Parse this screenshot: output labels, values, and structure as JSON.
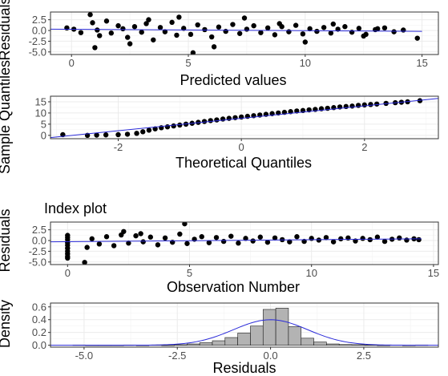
{
  "colors": {
    "point": "#000000",
    "fit_line": "#2b2bd9",
    "bar_fill": "#b3b3b3",
    "bar_stroke": "#1a1a1a",
    "grid": "#ebebeb",
    "panel_border": "#333333"
  },
  "chart_data": [
    {
      "type": "scatter",
      "title": "",
      "xlabel": "Predicted values",
      "ylabel": "Residuals",
      "xlim": [
        -0.9,
        15.7
      ],
      "ylim": [
        -5.6,
        4.3
      ],
      "xticks": [
        0,
        5,
        10,
        15
      ],
      "xtick_labels": [
        "0",
        "5",
        "10",
        "15"
      ],
      "yticks": [
        -5.0,
        -2.5,
        0.0,
        2.5
      ],
      "ytick_labels": [
        "-5.0",
        "-2.5",
        "0.0",
        "2.5"
      ],
      "grid": true,
      "series": [
        {
          "kind": "points",
          "x": [
            -0.2,
            0.1,
            0.4,
            0.8,
            0.9,
            1.1,
            1.2,
            1.5,
            1.7,
            2.0,
            2.2,
            2.4,
            2.7,
            3.0,
            3.2,
            3.5,
            3.8,
            4.0,
            4.3,
            4.5,
            4.8,
            5.1,
            5.4,
            5.7,
            6.0,
            6.3,
            6.6,
            6.9,
            7.2,
            7.5,
            7.8,
            8.1,
            8.4,
            8.7,
            9.0,
            9.3,
            9.6,
            9.9,
            10.2,
            10.5,
            10.8,
            11.1,
            11.4,
            11.7,
            12.0,
            12.3,
            12.6,
            13.0,
            13.4,
            13.8,
            14.2,
            14.8,
            1.0,
            2.5,
            3.3,
            4.6,
            5.2,
            6.1,
            7.4,
            8.9,
            10.0,
            11.2,
            12.5,
            13.1
          ],
          "y": [
            0.6,
            0.3,
            -0.5,
            3.7,
            1.8,
            0.1,
            -1.2,
            2.2,
            -0.6,
            1.1,
            0.4,
            -1.6,
            0.9,
            -0.4,
            1.6,
            -2.2,
            0.7,
            -0.3,
            1.9,
            -1.1,
            0.5,
            -0.9,
            1.3,
            0.2,
            -1.5,
            0.8,
            -0.2,
            1.4,
            -0.7,
            0.3,
            1.1,
            -0.5,
            0.6,
            -1.0,
            0.9,
            -0.3,
            1.2,
            -0.8,
            0.4,
            -0.2,
            0.7,
            -0.6,
            0.3,
            0.9,
            -0.4,
            0.5,
            -0.9,
            0.2,
            0.6,
            -0.3,
            0.1,
            -1.8,
            -4.0,
            -3.1,
            2.5,
            3.1,
            -5.2,
            -3.8,
            2.9,
            1.6,
            -2.7,
            1.5,
            -1.3,
            0.4
          ]
        },
        {
          "kind": "fit_line",
          "x": [
            -0.9,
            15.0
          ],
          "y": [
            0.3,
            -0.2
          ]
        }
      ]
    },
    {
      "type": "scatter",
      "title": "",
      "xlabel": "Theoretical Quantiles",
      "ylabel": "Sample Quantiles",
      "xlim": [
        -3.1,
        3.2
      ],
      "ylim": [
        -1.5,
        17.5
      ],
      "xticks": [
        -2,
        0,
        2
      ],
      "xtick_labels": [
        "-2",
        "0",
        "2"
      ],
      "yticks": [
        0,
        5,
        10,
        15
      ],
      "ytick_labels": [
        "0",
        "5",
        "10",
        "15"
      ],
      "grid": true,
      "series": [
        {
          "kind": "points",
          "x": [
            -2.9,
            -2.5,
            -2.35,
            -2.2,
            -2.0,
            -1.85,
            -1.7,
            -1.6,
            -1.5,
            -1.4,
            -1.3,
            -1.2,
            -1.1,
            -1.0,
            -0.9,
            -0.8,
            -0.7,
            -0.6,
            -0.5,
            -0.4,
            -0.3,
            -0.2,
            -0.1,
            0.0,
            0.1,
            0.2,
            0.3,
            0.4,
            0.5,
            0.6,
            0.7,
            0.8,
            0.9,
            1.0,
            1.1,
            1.2,
            1.3,
            1.4,
            1.5,
            1.6,
            1.7,
            1.8,
            1.9,
            2.0,
            2.1,
            2.2,
            2.35,
            2.5,
            2.6,
            2.7,
            2.9
          ],
          "y": [
            0.3,
            0.0,
            0.1,
            0.2,
            0.3,
            0.5,
            0.9,
            1.6,
            2.3,
            2.9,
            3.4,
            3.8,
            4.2,
            4.6,
            5.0,
            5.4,
            5.8,
            6.2,
            6.6,
            6.9,
            7.3,
            7.6,
            7.9,
            8.2,
            8.5,
            8.8,
            9.1,
            9.4,
            9.7,
            10.0,
            10.3,
            10.6,
            10.9,
            11.1,
            11.4,
            11.6,
            11.9,
            12.1,
            12.4,
            12.7,
            12.9,
            13.1,
            13.4,
            13.6,
            13.8,
            14.0,
            14.3,
            14.6,
            14.8,
            15.0,
            15.5
          ]
        },
        {
          "kind": "fit_line",
          "x": [
            -3.1,
            3.2
          ],
          "y": [
            -1.0,
            16.5
          ]
        }
      ]
    },
    {
      "type": "scatter",
      "title": "Index plot",
      "xlabel": "Observation Number",
      "ylabel": "Residuals",
      "xlim": [
        -0.7,
        15.2
      ],
      "ylim": [
        -5.6,
        4.3
      ],
      "xticks": [
        0,
        5,
        10,
        15
      ],
      "xtick_labels": [
        "0",
        "5",
        "10",
        "15"
      ],
      "yticks": [
        -5.0,
        -2.5,
        0.0,
        2.5
      ],
      "ytick_labels": [
        "-5.0",
        "-2.5",
        "0.0",
        "2.5"
      ],
      "grid": true,
      "series": [
        {
          "kind": "points",
          "x": [
            0,
            0,
            0,
            0,
            0,
            0,
            0,
            0,
            0,
            0,
            0.7,
            0.8,
            1.0,
            1.3,
            1.6,
            1.9,
            2.2,
            2.5,
            2.8,
            3.1,
            3.4,
            3.7,
            4.0,
            4.3,
            4.6,
            4.9,
            5.2,
            5.5,
            5.8,
            6.1,
            6.4,
            6.7,
            7.0,
            7.3,
            7.6,
            7.9,
            8.2,
            8.5,
            8.8,
            9.1,
            9.4,
            9.7,
            10.0,
            10.3,
            10.6,
            10.9,
            11.2,
            11.5,
            11.8,
            12.1,
            12.4,
            12.7,
            13.0,
            13.3,
            13.6,
            13.9,
            14.2,
            14.4,
            4.8,
            2.3,
            3.0
          ],
          "y": [
            0.2,
            -0.5,
            -1.1,
            -1.8,
            -2.5,
            -3.1,
            -3.7,
            -4.1,
            1.2,
            0.7,
            -5.1,
            -1.6,
            0.4,
            -0.8,
            0.9,
            -1.2,
            1.3,
            -0.6,
            1.1,
            -0.3,
            0.8,
            -1.0,
            0.6,
            -0.4,
            1.5,
            -0.7,
            0.3,
            0.9,
            -0.5,
            0.7,
            -0.2,
            1.0,
            -0.6,
            0.5,
            -0.1,
            0.8,
            -0.4,
            0.6,
            0.2,
            -0.3,
            0.9,
            -0.2,
            0.5,
            0.1,
            0.7,
            -0.3,
            0.4,
            0.6,
            -0.1,
            0.5,
            0.2,
            0.8,
            -0.2,
            0.3,
            0.6,
            0.1,
            0.4,
            0.2,
            3.9,
            2.1,
            1.6
          ]
        },
        {
          "kind": "fit_line",
          "x": [
            -0.7,
            14.5
          ],
          "y": [
            -0.3,
            0.4
          ]
        }
      ]
    },
    {
      "type": "bar",
      "title": "",
      "xlabel": "Residuals",
      "ylabel": "Density",
      "xlim": [
        -5.9,
        4.5
      ],
      "ylim": [
        -0.03,
        0.66
      ],
      "xticks": [
        -5.0,
        -2.5,
        0.0,
        2.5
      ],
      "xtick_labels": [
        "-5.0",
        "-2.5",
        "0.0",
        "2.5"
      ],
      "yticks": [
        0.0,
        0.2,
        0.4,
        0.6
      ],
      "ytick_labels": [
        "0.0",
        "0.2",
        "0.4",
        "0.6"
      ],
      "grid": true,
      "bin_edges": [
        -5.3,
        -4.96,
        -4.62,
        -4.28,
        -3.94,
        -3.6,
        -3.26,
        -2.92,
        -2.58,
        -2.24,
        -1.9,
        -1.56,
        -1.22,
        -0.88,
        -0.54,
        -0.2,
        0.14,
        0.48,
        0.82,
        1.16,
        1.5,
        1.84,
        2.18,
        2.52,
        2.86,
        3.2,
        3.54,
        3.88,
        4.22
      ],
      "values": [
        0.004,
        0.0,
        0.0,
        0.0,
        0.004,
        0.0,
        0.004,
        0.0,
        0.008,
        0.02,
        0.04,
        0.07,
        0.12,
        0.19,
        0.3,
        0.56,
        0.58,
        0.29,
        0.11,
        0.05,
        0.02,
        0.01,
        0.008,
        0.004,
        0.0,
        0.004,
        0.0,
        0.004
      ],
      "series": [
        {
          "kind": "density_curve",
          "name": "",
          "mean": 0.0,
          "sd": 1.0
        }
      ]
    }
  ]
}
